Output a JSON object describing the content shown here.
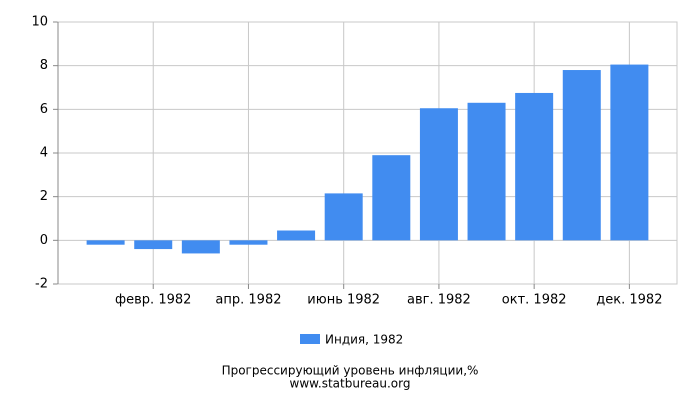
{
  "chart_data": {
    "type": "bar",
    "categories": [
      null,
      "февр. 1982",
      null,
      "апр. 1982",
      null,
      "июнь 1982",
      null,
      "авг. 1982",
      null,
      "окт. 1982",
      null,
      "дек. 1982"
    ],
    "series": [
      {
        "name": "Индия, 1982",
        "color": "#418cf0",
        "values": [
          -0.2,
          -0.4,
          -0.6,
          -0.2,
          0.45,
          2.15,
          3.9,
          6.05,
          6.3,
          6.75,
          7.8,
          8.05
        ]
      }
    ],
    "ylim": [
      -2,
      10
    ],
    "yticks": [
      -2,
      0,
      2,
      4,
      6,
      8,
      10
    ],
    "grid": true,
    "title": "Прогрессирующий уровень инфляции,%",
    "source": "www.statbureau.org"
  }
}
